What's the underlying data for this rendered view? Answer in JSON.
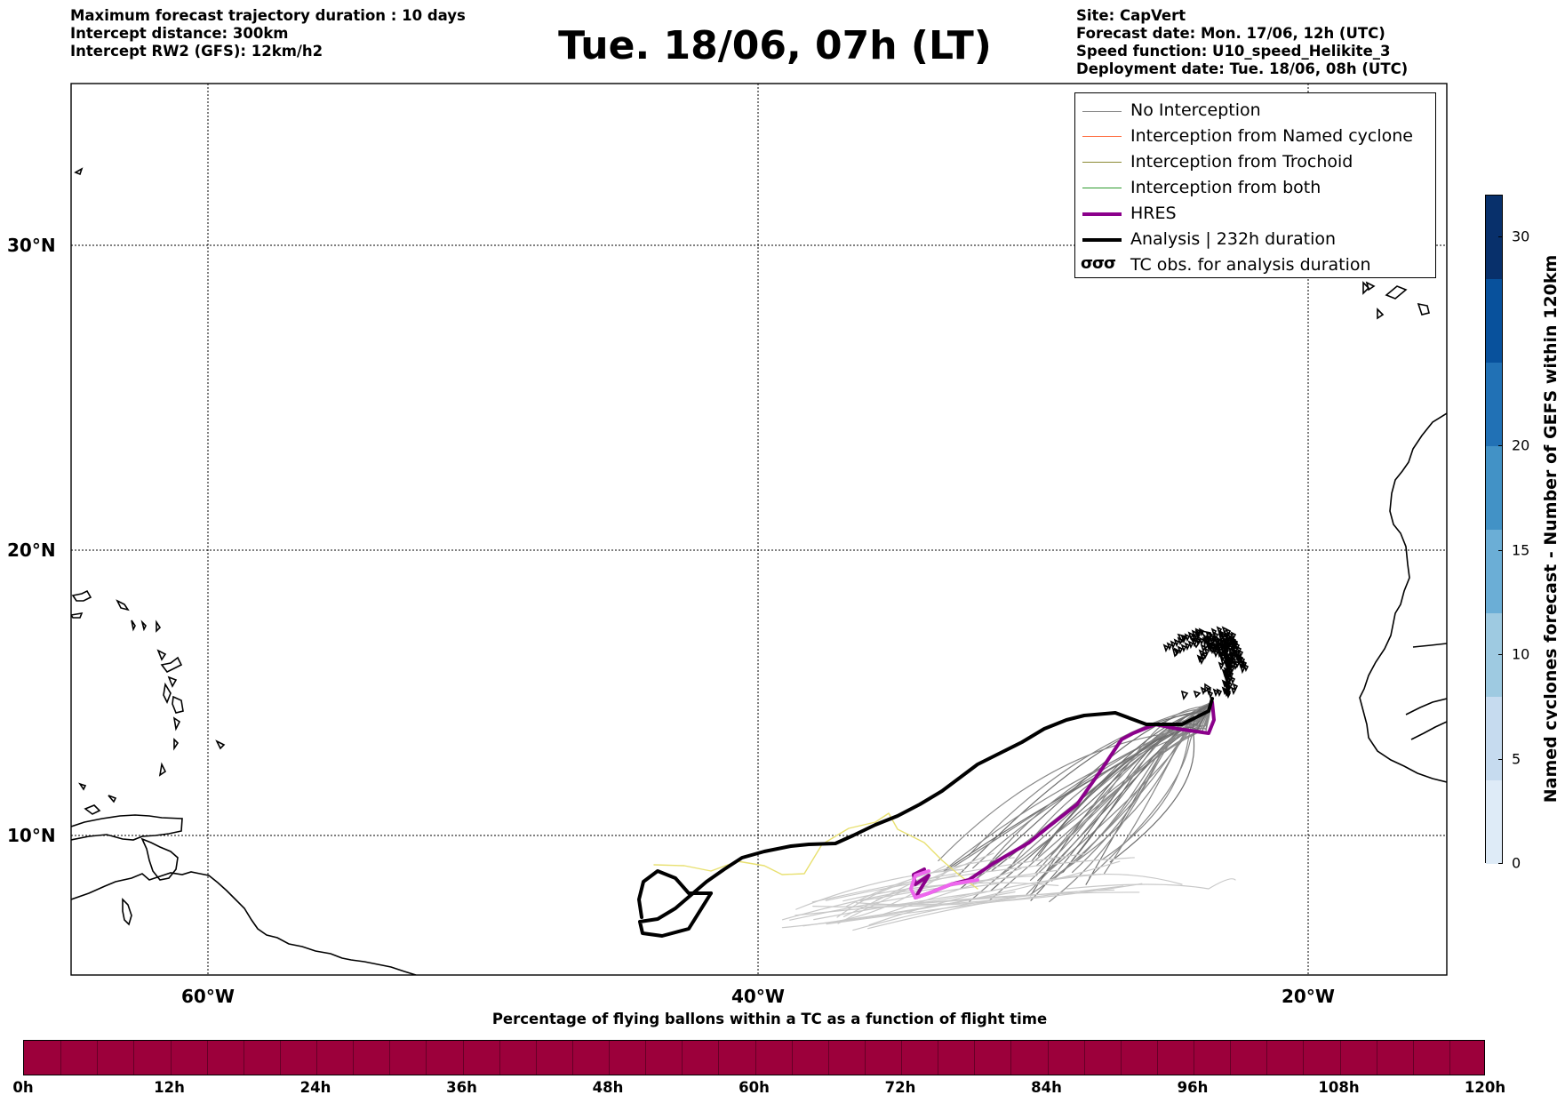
{
  "header_left": [
    "Maximum forecast trajectory duration : 10 days",
    "Intercept distance: 300km",
    "Intercept RW2 (GFS):  12km/h2"
  ],
  "title": "Tue. 18/06, 07h (LT)",
  "header_right": [
    "Site: CapVert",
    "Forecast date: Mon. 17/06, 12h (UTC)",
    "Speed function: U10_speed_Helikite_3",
    "Deployment date: Tue. 18/06, 08h (UTC)"
  ],
  "legend": [
    {
      "label": "No Interception",
      "color": "#888888",
      "width": 1
    },
    {
      "label": "Interception from Named cyclone",
      "color": "#ff6a3d",
      "width": 1.5
    },
    {
      "label": "Interception from Trochoid",
      "color": "#8c8a35",
      "width": 1.5
    },
    {
      "label": "Interception from both",
      "color": "#2e9a2e",
      "width": 1.5
    },
    {
      "label": "HRES",
      "color": "#8b008b",
      "width": 4
    },
    {
      "label": "Analysis | 232h duration",
      "color": "#000000",
      "width": 4
    },
    {
      "label": "TC obs. for analysis duration",
      "symbol": "σσσ"
    }
  ],
  "map": {
    "lat_labels": [
      "30°N",
      "20°N",
      "10°N"
    ],
    "lon_labels": [
      "60°W",
      "40°W",
      "20°W"
    ],
    "site_label": "CapVert"
  },
  "colorbar_bottom": {
    "title": "Percentage of flying ballons within a TC as a function of flight time",
    "labels": [
      "0h",
      "12h",
      "24h",
      "36h",
      "48h",
      "60h",
      "72h",
      "84h",
      "96h",
      "108h",
      "120h"
    ],
    "fill_color": "#9c003b"
  },
  "colorbar_right": {
    "title": "Named cyclones forecast - Number of GEFS within 120km",
    "labels": [
      "30",
      "20",
      "15",
      "10",
      "5",
      "0"
    ],
    "max": 32,
    "colors": [
      "#deebf7",
      "#c6dbef",
      "#9ecae1",
      "#6baed6",
      "#4292c6",
      "#2171b5",
      "#08519c",
      "#08306b"
    ]
  }
}
